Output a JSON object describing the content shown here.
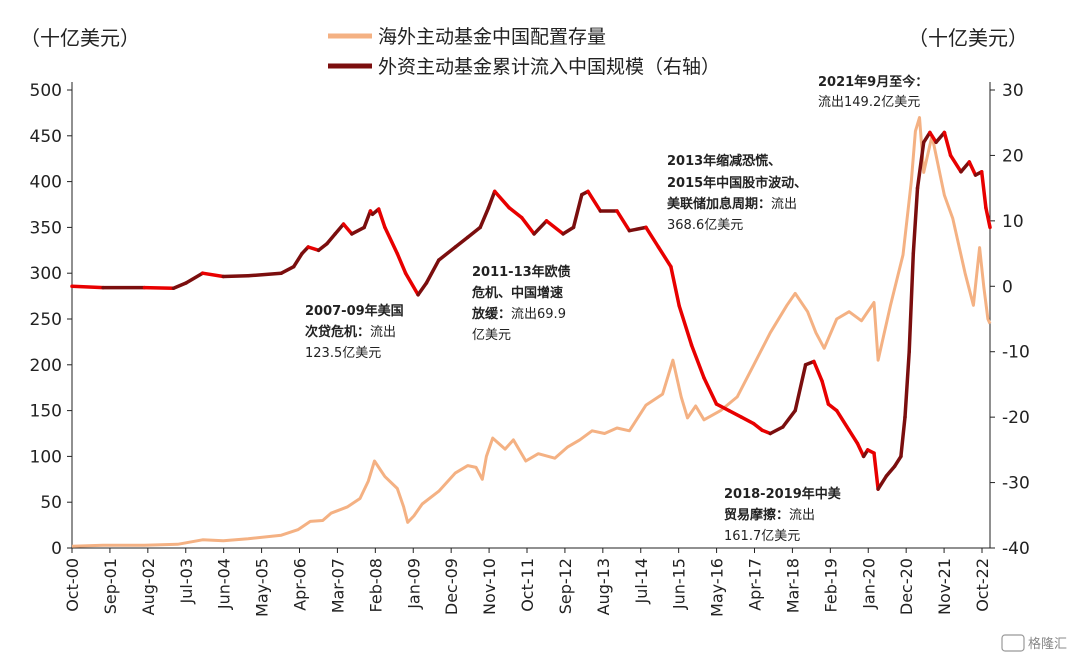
{
  "chart_data": {
    "type": "line",
    "left_unit": "（十亿美元）",
    "right_unit": "（十亿美元）",
    "left_axis": {
      "min": 0,
      "max": 500,
      "ticks": [
        0,
        50,
        100,
        150,
        200,
        250,
        300,
        350,
        400,
        450,
        500
      ]
    },
    "right_axis": {
      "min": -40,
      "max": 30,
      "ticks": [
        -40,
        -30,
        -20,
        -10,
        0,
        10,
        20,
        30
      ]
    },
    "x_range": [
      2000.75,
      2022.9
    ],
    "x_ticks": [
      "Oct-00",
      "Sep-01",
      "Aug-02",
      "Jul-03",
      "Jun-04",
      "May-05",
      "Apr-06",
      "Mar-07",
      "Feb-08",
      "Jan-09",
      "Dec-09",
      "Nov-10",
      "Oct-11",
      "Sep-12",
      "Aug-13",
      "Jul-14",
      "Jun-15",
      "May-16",
      "Apr-17",
      "Mar-18",
      "Feb-19",
      "Jan-20",
      "Dec-20",
      "Nov-21",
      "Oct-22"
    ],
    "series": [
      {
        "name": "海外主动基金中国配置存量",
        "axis": "left",
        "color": "#F4B183",
        "points": [
          [
            2000.75,
            2
          ],
          [
            2001.5,
            3
          ],
          [
            2002.5,
            3
          ],
          [
            2003.3,
            4
          ],
          [
            2003.9,
            9
          ],
          [
            2004.4,
            8
          ],
          [
            2005.0,
            10
          ],
          [
            2005.8,
            14
          ],
          [
            2006.2,
            20
          ],
          [
            2006.5,
            29
          ],
          [
            2006.8,
            30
          ],
          [
            2007.0,
            38
          ],
          [
            2007.4,
            45
          ],
          [
            2007.7,
            54
          ],
          [
            2007.9,
            73
          ],
          [
            2008.05,
            95
          ],
          [
            2008.3,
            78
          ],
          [
            2008.6,
            65
          ],
          [
            2008.75,
            45
          ],
          [
            2008.85,
            28
          ],
          [
            2009.0,
            35
          ],
          [
            2009.2,
            48
          ],
          [
            2009.6,
            62
          ],
          [
            2010.0,
            82
          ],
          [
            2010.3,
            90
          ],
          [
            2010.5,
            88
          ],
          [
            2010.65,
            75
          ],
          [
            2010.75,
            100
          ],
          [
            2010.9,
            120
          ],
          [
            2011.2,
            108
          ],
          [
            2011.4,
            118
          ],
          [
            2011.7,
            95
          ],
          [
            2012.0,
            103
          ],
          [
            2012.4,
            98
          ],
          [
            2012.7,
            110
          ],
          [
            2013.0,
            118
          ],
          [
            2013.3,
            128
          ],
          [
            2013.6,
            125
          ],
          [
            2013.9,
            131
          ],
          [
            2014.2,
            128
          ],
          [
            2014.6,
            156
          ],
          [
            2015.0,
            168
          ],
          [
            2015.25,
            205
          ],
          [
            2015.45,
            165
          ],
          [
            2015.6,
            142
          ],
          [
            2015.8,
            155
          ],
          [
            2016.0,
            140
          ],
          [
            2016.4,
            150
          ],
          [
            2016.8,
            165
          ],
          [
            2017.2,
            200
          ],
          [
            2017.6,
            235
          ],
          [
            2018.0,
            265
          ],
          [
            2018.2,
            278
          ],
          [
            2018.5,
            258
          ],
          [
            2018.7,
            235
          ],
          [
            2018.9,
            218
          ],
          [
            2019.2,
            250
          ],
          [
            2019.5,
            258
          ],
          [
            2019.8,
            248
          ],
          [
            2020.1,
            268
          ],
          [
            2020.2,
            205
          ],
          [
            2020.5,
            265
          ],
          [
            2020.8,
            320
          ],
          [
            2021.0,
            400
          ],
          [
            2021.1,
            455
          ],
          [
            2021.2,
            470
          ],
          [
            2021.3,
            410
          ],
          [
            2021.5,
            450
          ],
          [
            2021.8,
            385
          ],
          [
            2022.0,
            360
          ],
          [
            2022.3,
            300
          ],
          [
            2022.5,
            265
          ],
          [
            2022.65,
            328
          ],
          [
            2022.75,
            285
          ],
          [
            2022.85,
            250
          ],
          [
            2022.9,
            245
          ]
        ]
      },
      {
        "name": "外资主动基金累计流入中国规模（右轴）",
        "axis": "right",
        "color": "#7B0E0E",
        "color_outflow": "#E80000",
        "points": [
          [
            2000.75,
            0
          ],
          [
            2001.5,
            -0.2
          ],
          [
            2002.5,
            -0.2
          ],
          [
            2003.2,
            -0.3
          ],
          [
            2003.5,
            0.5
          ],
          [
            2003.9,
            2
          ],
          [
            2004.4,
            1.5
          ],
          [
            2005.0,
            1.6
          ],
          [
            2005.8,
            2
          ],
          [
            2006.1,
            3
          ],
          [
            2006.3,
            5
          ],
          [
            2006.45,
            6
          ],
          [
            2006.7,
            5.5
          ],
          [
            2006.9,
            6.5
          ],
          [
            2007.1,
            8
          ],
          [
            2007.3,
            9.5
          ],
          [
            2007.5,
            8
          ],
          [
            2007.8,
            9
          ],
          [
            2007.95,
            11.5
          ],
          [
            2008.0,
            11
          ],
          [
            2008.15,
            11.8
          ],
          [
            2008.3,
            9
          ],
          [
            2008.6,
            5
          ],
          [
            2008.8,
            2
          ],
          [
            2009.1,
            -1.3
          ],
          [
            2009.3,
            0.5
          ],
          [
            2009.6,
            4
          ],
          [
            2010.0,
            6
          ],
          [
            2010.3,
            7.5
          ],
          [
            2010.6,
            9
          ],
          [
            2010.8,
            12
          ],
          [
            2010.95,
            14.5
          ],
          [
            2011.3,
            12
          ],
          [
            2011.6,
            10.5
          ],
          [
            2011.9,
            8
          ],
          [
            2012.2,
            10
          ],
          [
            2012.6,
            8
          ],
          [
            2012.85,
            9
          ],
          [
            2013.05,
            14
          ],
          [
            2013.2,
            14.5
          ],
          [
            2013.5,
            11.5
          ],
          [
            2013.9,
            11.5
          ],
          [
            2014.2,
            8.5
          ],
          [
            2014.6,
            9
          ],
          [
            2014.9,
            6
          ],
          [
            2015.2,
            3
          ],
          [
            2015.4,
            -3
          ],
          [
            2015.7,
            -9
          ],
          [
            2016.0,
            -14
          ],
          [
            2016.3,
            -18
          ],
          [
            2016.6,
            -19
          ],
          [
            2016.9,
            -20
          ],
          [
            2017.2,
            -21
          ],
          [
            2017.4,
            -22
          ],
          [
            2017.6,
            -22.5
          ],
          [
            2017.9,
            -21.5
          ],
          [
            2018.2,
            -19
          ],
          [
            2018.45,
            -12
          ],
          [
            2018.65,
            -11.5
          ],
          [
            2018.85,
            -14.5
          ],
          [
            2019.0,
            -18
          ],
          [
            2019.2,
            -19
          ],
          [
            2019.5,
            -22
          ],
          [
            2019.7,
            -24
          ],
          [
            2019.85,
            -26
          ],
          [
            2019.95,
            -25
          ],
          [
            2020.1,
            -25.5
          ],
          [
            2020.2,
            -31
          ],
          [
            2020.4,
            -29
          ],
          [
            2020.6,
            -27.5
          ],
          [
            2020.75,
            -26
          ],
          [
            2020.85,
            -20
          ],
          [
            2020.95,
            -10
          ],
          [
            2021.05,
            5
          ],
          [
            2021.15,
            15
          ],
          [
            2021.3,
            22
          ],
          [
            2021.45,
            23.5
          ],
          [
            2021.6,
            22
          ],
          [
            2021.8,
            23.5
          ],
          [
            2021.95,
            20
          ],
          [
            2022.2,
            17.5
          ],
          [
            2022.4,
            19
          ],
          [
            2022.55,
            17
          ],
          [
            2022.7,
            17.5
          ],
          [
            2022.8,
            12
          ],
          [
            2022.9,
            9
          ]
        ]
      }
    ],
    "annotations": [
      {
        "bold": "2021年9月至今：",
        "normal": "流出149.2亿美元"
      },
      {
        "bold": "2013年缩减恐慌、",
        "bold2": "2015年中国股市波动、",
        "bold3": "美联储加息周期：",
        "normal_after": "流出",
        "normal2": "368.6亿美元"
      },
      {
        "bold": "2011-13年欧债",
        "bold2": "危机、中国增速",
        "bold3": "放缓：",
        "normal_after": "流出69.9",
        "normal2": "亿美元"
      },
      {
        "bold": "2007-09年美国",
        "bold2": "次贷危机：",
        "normal_after": "流出",
        "normal2": "123.5亿美元"
      },
      {
        "bold": "2018-2019年中美",
        "bold2": "贸易摩擦：",
        "normal_after": "流出",
        "normal2": "161.7亿美元"
      }
    ],
    "watermark": "格隆汇"
  }
}
